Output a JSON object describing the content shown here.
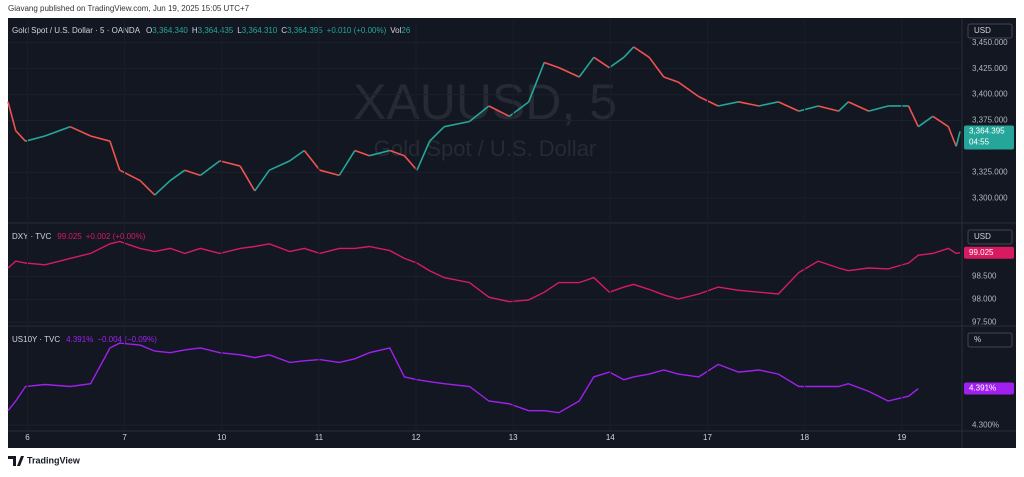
{
  "header": "Giavang published on TradingView.com, Jun 19, 2025 15:05 UTC+7",
  "footer": {
    "brand": "TradingView"
  },
  "chart_data": [
    {
      "type": "line",
      "unit": "USD",
      "name": "Gold Spot / U.S. Dollar · 5 · OANDA",
      "legend": [
        {
          "label": "O",
          "value": "3,364.340"
        },
        {
          "label": "H",
          "value": "3,364.435"
        },
        {
          "label": "L",
          "value": "3,364.310"
        },
        {
          "label": "C",
          "value": "3,364.395"
        }
      ],
      "change": "+0.010 (+0.00%)",
      "volume_label": "Vol",
      "volume": "26",
      "watermark": "XAUUSD, 5",
      "watermark_sub": "Gold Spot / U.S. Dollar",
      "last_label": "3,364.395",
      "countdown": "04:55",
      "up_color": "#26a69a",
      "down_color": "#ef5350",
      "badge_color": "#26a69a",
      "legend_color": "#26a69a",
      "x": [
        -0.2,
        -0.12,
        -0.02,
        0.18,
        0.44,
        0.65,
        0.85,
        0.95,
        1.16,
        1.31,
        1.47,
        1.62,
        1.78,
        1.98,
        2.19,
        2.34,
        2.49,
        2.7,
        2.85,
        3.01,
        3.21,
        3.37,
        3.52,
        3.73,
        3.88,
        4.01,
        4.14,
        4.29,
        4.55,
        4.75,
        4.96,
        5.16,
        5.32,
        5.47,
        5.68,
        5.83,
        5.99,
        6.14,
        6.24,
        6.4,
        6.55,
        6.7,
        6.91,
        7.11,
        7.32,
        7.53,
        7.73,
        7.94,
        8.14,
        8.35,
        8.45,
        8.66,
        8.86,
        9.07,
        9.17,
        9.32,
        9.48,
        9.56,
        9.6
      ],
      "values": [
        3393,
        3365,
        3355,
        3360,
        3369,
        3360,
        3355,
        3327,
        3317,
        3303,
        3317,
        3327,
        3322,
        3336,
        3331,
        3307,
        3327,
        3336,
        3346,
        3327,
        3322,
        3346,
        3341,
        3346,
        3341,
        3327,
        3355,
        3369,
        3374,
        3389,
        3379,
        3393,
        3431,
        3426,
        3417,
        3436,
        3426,
        3436,
        3446,
        3436,
        3417,
        3412,
        3398,
        3389,
        3393,
        3389,
        3393,
        3384,
        3389,
        3384,
        3393,
        3384,
        3389,
        3389,
        3369,
        3379,
        3369,
        3350,
        3364.395
      ],
      "xlim": [
        -0.2,
        9.62
      ],
      "ylim": [
        3277,
        3472
      ],
      "yticks": [
        {
          "value": 3300,
          "label": "3,300.000"
        },
        {
          "value": 3325,
          "label": "3,325.000"
        },
        {
          "value": 3375,
          "label": "3,375.000"
        },
        {
          "value": 3400,
          "label": "3,400.000"
        },
        {
          "value": 3425,
          "label": "3,425.000"
        },
        {
          "value": 3450,
          "label": "3,450.000"
        }
      ]
    },
    {
      "type": "line",
      "unit": "USD",
      "name": "DXY · TVC",
      "last_label": "99.025",
      "change": "+0.002 (+0.00%)",
      "color": "#d81b60",
      "badge_color": "#d81b60",
      "legend_color": "#d81b60",
      "x": [
        -0.2,
        -0.12,
        -0.02,
        0.18,
        0.44,
        0.65,
        0.85,
        0.95,
        1.16,
        1.31,
        1.47,
        1.62,
        1.78,
        1.98,
        2.19,
        2.34,
        2.49,
        2.7,
        2.85,
        3.01,
        3.21,
        3.37,
        3.52,
        3.73,
        3.88,
        4.01,
        4.14,
        4.29,
        4.55,
        4.75,
        4.96,
        5.16,
        5.32,
        5.47,
        5.68,
        5.83,
        5.99,
        6.14,
        6.24,
        6.4,
        6.55,
        6.7,
        6.91,
        7.11,
        7.32,
        7.53,
        7.73,
        7.94,
        8.14,
        8.35,
        8.45,
        8.66,
        8.86,
        9.07,
        9.17,
        9.32,
        9.48,
        9.56,
        9.6
      ],
      "values": [
        98.69,
        98.84,
        98.8,
        98.76,
        98.9,
        99.01,
        99.22,
        99.27,
        99.12,
        99.05,
        99.12,
        99.01,
        99.12,
        99.01,
        99.12,
        99.16,
        99.22,
        99.05,
        99.12,
        99.01,
        99.12,
        99.12,
        99.16,
        99.07,
        98.9,
        98.8,
        98.63,
        98.48,
        98.37,
        98.05,
        97.95,
        97.99,
        98.16,
        98.37,
        98.37,
        98.48,
        98.16,
        98.27,
        98.33,
        98.22,
        98.1,
        98.01,
        98.12,
        98.27,
        98.2,
        98.16,
        98.12,
        98.59,
        98.84,
        98.69,
        98.63,
        98.69,
        98.67,
        98.8,
        98.97,
        99.01,
        99.12,
        99.01,
        99.025
      ],
      "xlim": [
        -0.2,
        9.62
      ],
      "ylim": [
        97.44,
        99.61
      ],
      "yticks": [
        {
          "value": 97.5,
          "label": "97.500"
        },
        {
          "value": 98,
          "label": "98.000"
        },
        {
          "value": 98.5,
          "label": "98.500"
        }
      ]
    },
    {
      "type": "line",
      "unit": "%",
      "name": "US10Y · TVC",
      "last_label": "4.391%",
      "change": "−0.004 (−0.09%)",
      "color": "#a020f0",
      "badge_color": "#a020f0",
      "legend_color": "#a020f0",
      "x": [
        -0.2,
        -0.12,
        -0.02,
        0.18,
        0.44,
        0.65,
        0.85,
        0.95,
        1.16,
        1.31,
        1.47,
        1.62,
        1.78,
        1.98,
        2.19,
        2.34,
        2.49,
        2.7,
        2.85,
        3.01,
        3.21,
        3.37,
        3.52,
        3.73,
        3.88,
        4.01,
        4.14,
        4.29,
        4.55,
        4.75,
        4.96,
        5.16,
        5.32,
        5.47,
        5.68,
        5.83,
        5.99,
        6.14,
        6.24,
        6.4,
        6.55,
        6.7,
        6.91,
        7.11,
        7.32,
        7.53,
        7.73,
        7.94,
        8.14,
        8.35,
        8.45,
        8.66,
        8.86,
        9.07,
        9.17
      ],
      "values": [
        4.336,
        4.36,
        4.396,
        4.401,
        4.396,
        4.403,
        4.492,
        4.504,
        4.499,
        4.484,
        4.48,
        4.487,
        4.492,
        4.48,
        4.475,
        4.468,
        4.475,
        4.456,
        4.46,
        4.463,
        4.456,
        4.465,
        4.48,
        4.492,
        4.42,
        4.413,
        4.408,
        4.403,
        4.396,
        4.36,
        4.353,
        4.336,
        4.336,
        4.331,
        4.36,
        4.42,
        4.432,
        4.413,
        4.42,
        4.427,
        4.437,
        4.427,
        4.42,
        4.451,
        4.432,
        4.437,
        4.427,
        4.396,
        4.396,
        4.396,
        4.403,
        4.384,
        4.36,
        4.372,
        4.391
      ],
      "xlim": [
        -0.2,
        9.62
      ],
      "ylim": [
        4.288,
        4.539
      ],
      "yticks": [
        {
          "value": 4.3,
          "label": "4.300%"
        }
      ],
      "xticks": [
        {
          "value": 0,
          "label": "6"
        },
        {
          "value": 1,
          "label": "7"
        },
        {
          "value": 2,
          "label": "10"
        },
        {
          "value": 3,
          "label": "11"
        },
        {
          "value": 4,
          "label": "12"
        },
        {
          "value": 5,
          "label": "13"
        },
        {
          "value": 6,
          "label": "14"
        },
        {
          "value": 7,
          "label": "17"
        },
        {
          "value": 8,
          "label": "18"
        },
        {
          "value": 9,
          "label": "19"
        }
      ]
    }
  ]
}
